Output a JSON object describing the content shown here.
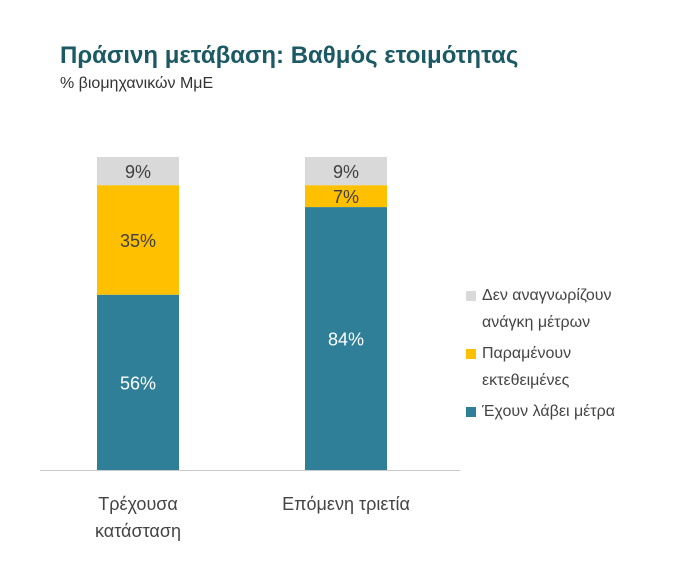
{
  "header": {
    "title": "Πράσινη μετάβαση: Βαθμός ετοιμότητας",
    "subtitle": "% βιομηχανικών ΜμΕ"
  },
  "colors": {
    "title": "#1b5a64",
    "teal": "#2e7f97",
    "yellow": "#ffc000",
    "gray": "#d9d9d9",
    "axis": "#c8c8c8"
  },
  "chart_data": {
    "type": "bar",
    "stacked": true,
    "categories": [
      "Τρέχουσα κατάσταση",
      "Επόμενη τριετία"
    ],
    "category_lines": [
      [
        "Τρέχουσα",
        "κατάσταση"
      ],
      [
        "Επόμενη τριετία"
      ]
    ],
    "series": [
      {
        "name": "Έχουν λάβει μέτρα",
        "values": [
          56,
          84
        ],
        "labels": [
          "56%",
          "84%"
        ],
        "color": "#2e7f97",
        "label_color": "#ffffff"
      },
      {
        "name": "Παραμένουν εκτεθειμένες",
        "values": [
          35,
          7
        ],
        "labels": [
          "35%",
          "7%"
        ],
        "color": "#ffc000",
        "label_color": "#404040"
      },
      {
        "name": "Δεν αναγνωρίζουν ανάγκη μέτρων",
        "values": [
          9,
          9
        ],
        "labels": [
          "9%",
          "9%"
        ],
        "color": "#d9d9d9",
        "label_color": "#404040"
      }
    ],
    "legend_order": [
      2,
      1,
      0
    ],
    "ylim": [
      0,
      100
    ],
    "legend_position": "right",
    "grid": false
  },
  "legend": [
    {
      "lines": [
        "Δεν αναγνωρίζουν",
        "ανάγκη μέτρων"
      ],
      "color": "#d9d9d9"
    },
    {
      "lines": [
        "Παραμένουν",
        "εκτεθειμένες"
      ],
      "color": "#ffc000"
    },
    {
      "lines": [
        "Έχουν λάβει μέτρα"
      ],
      "color": "#2e7f97"
    }
  ]
}
